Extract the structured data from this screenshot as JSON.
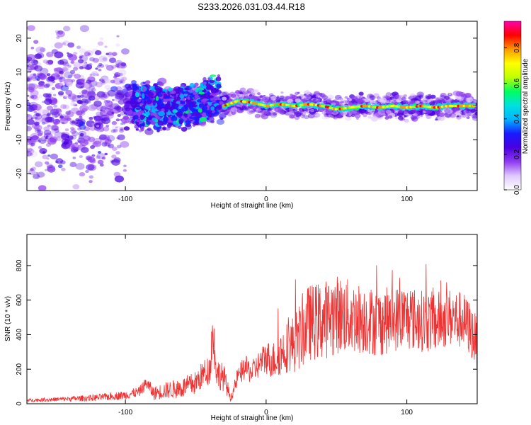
{
  "title": "S233.2026.031.03.44.R18",
  "chart_data": [
    {
      "type": "heatmap",
      "xlabel": "Height of straight line (km)",
      "ylabel": "Frequency (Hz)",
      "xlim": [
        -170,
        150
      ],
      "ylim": [
        -25,
        25
      ],
      "x_ticks": [
        -100,
        0,
        100
      ],
      "y_ticks": [
        -20,
        -10,
        0,
        10,
        20
      ],
      "colorbar": {
        "label": "Normalized spectral amplitude",
        "range": [
          0,
          0.95
        ],
        "ticks": [
          "0.0",
          "0.2",
          "0.4",
          "0.6",
          "0.8"
        ],
        "ramp": [
          "#ffffff",
          "#e0c8ff",
          "#8f3cf0",
          "#4a00e0",
          "#1a1aff",
          "#00b4ff",
          "#00e0e0",
          "#00ff60",
          "#bfff00",
          "#ffff00",
          "#ff9900",
          "#ff0000",
          "#ff00aa"
        ]
      },
      "ridge": {
        "x": [
          -30,
          -20,
          -10,
          0,
          10,
          20,
          30,
          40,
          50,
          60,
          70,
          80,
          90,
          100,
          110,
          120,
          130,
          140,
          148
        ],
        "freq": [
          0,
          1.5,
          1,
          0,
          0.5,
          0,
          0.5,
          0,
          -1,
          -0.5,
          0,
          -0.5,
          0,
          -0.5,
          0,
          -0.5,
          0,
          0,
          0
        ]
      }
    },
    {
      "type": "line",
      "xlabel": "Height of straight line (km)",
      "ylabel": "SNR (10 * v/v)",
      "xlim": [
        -170,
        150
      ],
      "ylim": [
        0,
        980
      ],
      "x_ticks": [
        -100,
        0,
        100
      ],
      "y_ticks": [
        0,
        200,
        400,
        600,
        800
      ],
      "series": [
        {
          "name": "SNR",
          "color": "#ee3333",
          "x": [
            -170,
            -150,
            -120,
            -100,
            -90,
            -85,
            -80,
            -70,
            -60,
            -50,
            -45,
            -40,
            -38,
            -35,
            -30,
            -25,
            -20,
            -15,
            -10,
            -5,
            0,
            5,
            10,
            15,
            20,
            25,
            30,
            40,
            50,
            60,
            70,
            80,
            90,
            100,
            110,
            120,
            130,
            140,
            145,
            150
          ],
          "y": [
            20,
            25,
            35,
            50,
            70,
            120,
            60,
            80,
            90,
            120,
            170,
            200,
            420,
            180,
            150,
            30,
            160,
            210,
            180,
            230,
            270,
            250,
            290,
            330,
            350,
            400,
            470,
            480,
            520,
            500,
            490,
            470,
            490,
            500,
            480,
            470,
            500,
            480,
            430,
            350
          ],
          "spread": [
            10,
            12,
            20,
            25,
            30,
            40,
            40,
            50,
            60,
            70,
            80,
            90,
            160,
            90,
            80,
            20,
            60,
            70,
            70,
            80,
            100,
            110,
            130,
            150,
            170,
            200,
            220,
            230,
            230,
            220,
            200,
            200,
            190,
            190,
            180,
            180,
            170,
            170,
            160,
            150
          ]
        }
      ]
    }
  ]
}
